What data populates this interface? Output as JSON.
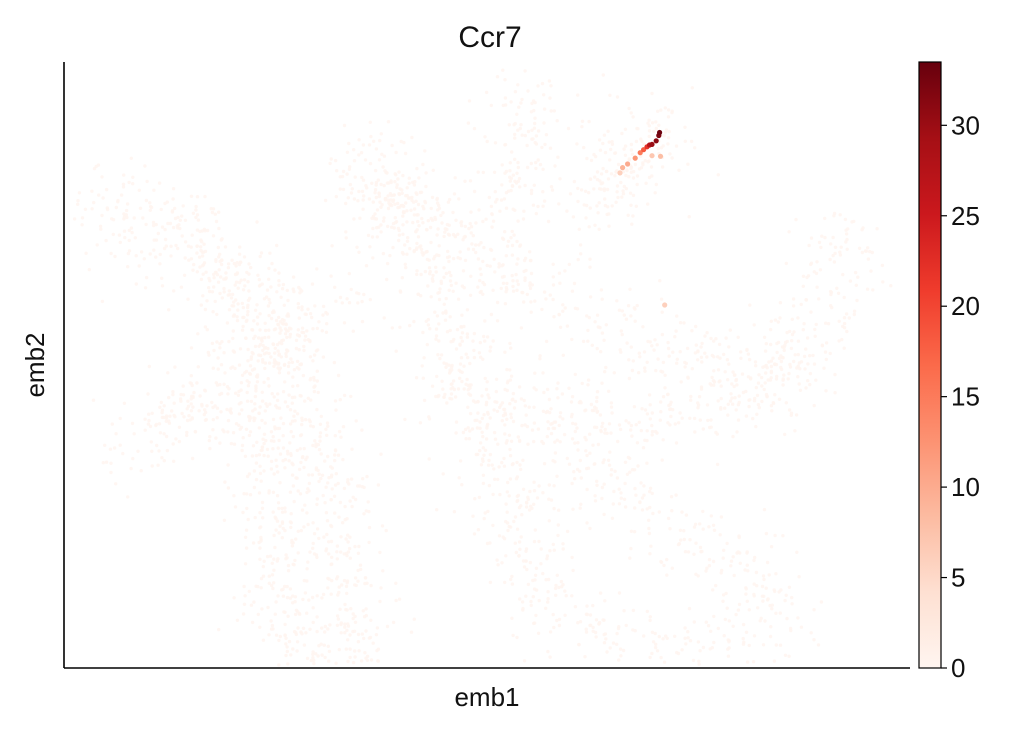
{
  "chart_data": {
    "type": "scatter",
    "title": "Ccr7",
    "xlabel": "emb1",
    "ylabel": "emb2",
    "xticks": "none",
    "yticks": "none",
    "grid": false,
    "colorbar": {
      "colormap": "Reds",
      "colors": [
        "#fff5f0",
        "#fee0d2",
        "#fcbba1",
        "#fc9272",
        "#fb6a4a",
        "#ef3b2c",
        "#cb181d",
        "#a50f15",
        "#67000d"
      ],
      "range": [
        0,
        33.5
      ],
      "ticks": [
        0,
        5,
        10,
        15,
        20,
        25,
        30
      ],
      "tick_labels": [
        "0",
        "5",
        "10",
        "15",
        "20",
        "25",
        "30"
      ]
    },
    "background_cells": {
      "value": 0,
      "note_count": 3600,
      "regions": [
        [
          [
            0.05,
            0.79
          ],
          [
            0.16,
            0.72
          ],
          [
            0.24,
            0.55
          ],
          [
            0.3,
            0.35
          ],
          [
            0.33,
            0.15
          ],
          [
            0.36,
            -0.02
          ]
        ],
        [
          [
            0.22,
            0.44
          ],
          [
            0.24,
            0.31
          ],
          [
            0.25,
            0.16
          ],
          [
            0.27,
            0.05
          ],
          [
            0.3,
            -0.03
          ],
          [
            0.34,
            -0.01
          ]
        ],
        [
          [
            0.04,
            0.77
          ],
          [
            0.08,
            0.73
          ],
          [
            0.14,
            0.68
          ],
          [
            0.22,
            0.63
          ],
          [
            0.28,
            0.58
          ]
        ],
        [
          [
            0.05,
            0.36
          ],
          [
            0.12,
            0.4
          ],
          [
            0.19,
            0.47
          ],
          [
            0.25,
            0.53
          ],
          [
            0.33,
            0.62
          ]
        ],
        [
          [
            0.12,
            0.44
          ],
          [
            0.2,
            0.41
          ],
          [
            0.28,
            0.38
          ],
          [
            0.34,
            0.33
          ]
        ],
        [
          [
            0.38,
            0.83
          ],
          [
            0.42,
            0.7
          ],
          [
            0.46,
            0.55
          ],
          [
            0.5,
            0.4
          ],
          [
            0.53,
            0.26
          ],
          [
            0.57,
            0.12
          ],
          [
            0.62,
            0.05
          ],
          [
            0.7,
            0.02
          ],
          [
            0.78,
            0.03
          ],
          [
            0.86,
            0.08
          ]
        ],
        [
          [
            0.35,
            0.8
          ],
          [
            0.44,
            0.73
          ],
          [
            0.53,
            0.65
          ],
          [
            0.62,
            0.58
          ],
          [
            0.72,
            0.52
          ],
          [
            0.81,
            0.49
          ],
          [
            0.87,
            0.53
          ],
          [
            0.91,
            0.63
          ],
          [
            0.92,
            0.74
          ]
        ],
        [
          [
            0.45,
            0.45
          ],
          [
            0.57,
            0.43
          ],
          [
            0.69,
            0.41
          ],
          [
            0.8,
            0.44
          ],
          [
            0.88,
            0.54
          ]
        ],
        [
          [
            0.57,
            0.4
          ],
          [
            0.65,
            0.3
          ],
          [
            0.73,
            0.22
          ],
          [
            0.8,
            0.16
          ],
          [
            0.86,
            0.12
          ]
        ],
        [
          [
            0.55,
            0.98
          ],
          [
            0.56,
            0.92
          ],
          [
            0.55,
            0.85
          ],
          [
            0.52,
            0.76
          ],
          [
            0.47,
            0.72
          ]
        ],
        [
          [
            0.36,
            0.88
          ],
          [
            0.38,
            0.8
          ],
          [
            0.4,
            0.72
          ]
        ],
        [
          [
            0.64,
            0.8
          ],
          [
            0.67,
            0.84
          ],
          [
            0.7,
            0.88
          ],
          [
            0.72,
            0.91
          ]
        ],
        [
          [
            0.62,
            0.74
          ],
          [
            0.66,
            0.84
          ],
          [
            0.68,
            0.92
          ]
        ]
      ]
    },
    "expressing_cells": [
      {
        "x": 0.705,
        "y": 0.895,
        "value": 33
      },
      {
        "x": 0.704,
        "y": 0.89,
        "value": 32
      },
      {
        "x": 0.701,
        "y": 0.881,
        "value": 31
      },
      {
        "x": 0.696,
        "y": 0.875,
        "value": 30
      },
      {
        "x": 0.693,
        "y": 0.874,
        "value": 27
      },
      {
        "x": 0.69,
        "y": 0.871,
        "value": 22
      },
      {
        "x": 0.686,
        "y": 0.866,
        "value": 18
      },
      {
        "x": 0.682,
        "y": 0.861,
        "value": 15
      },
      {
        "x": 0.676,
        "y": 0.852,
        "value": 12
      },
      {
        "x": 0.667,
        "y": 0.842,
        "value": 10
      },
      {
        "x": 0.661,
        "y": 0.836,
        "value": 9
      },
      {
        "x": 0.706,
        "y": 0.855,
        "value": 8
      },
      {
        "x": 0.696,
        "y": 0.856,
        "value": 7
      },
      {
        "x": 0.711,
        "y": 0.605,
        "value": 6
      },
      {
        "x": 0.658,
        "y": 0.827,
        "value": 6
      }
    ]
  }
}
